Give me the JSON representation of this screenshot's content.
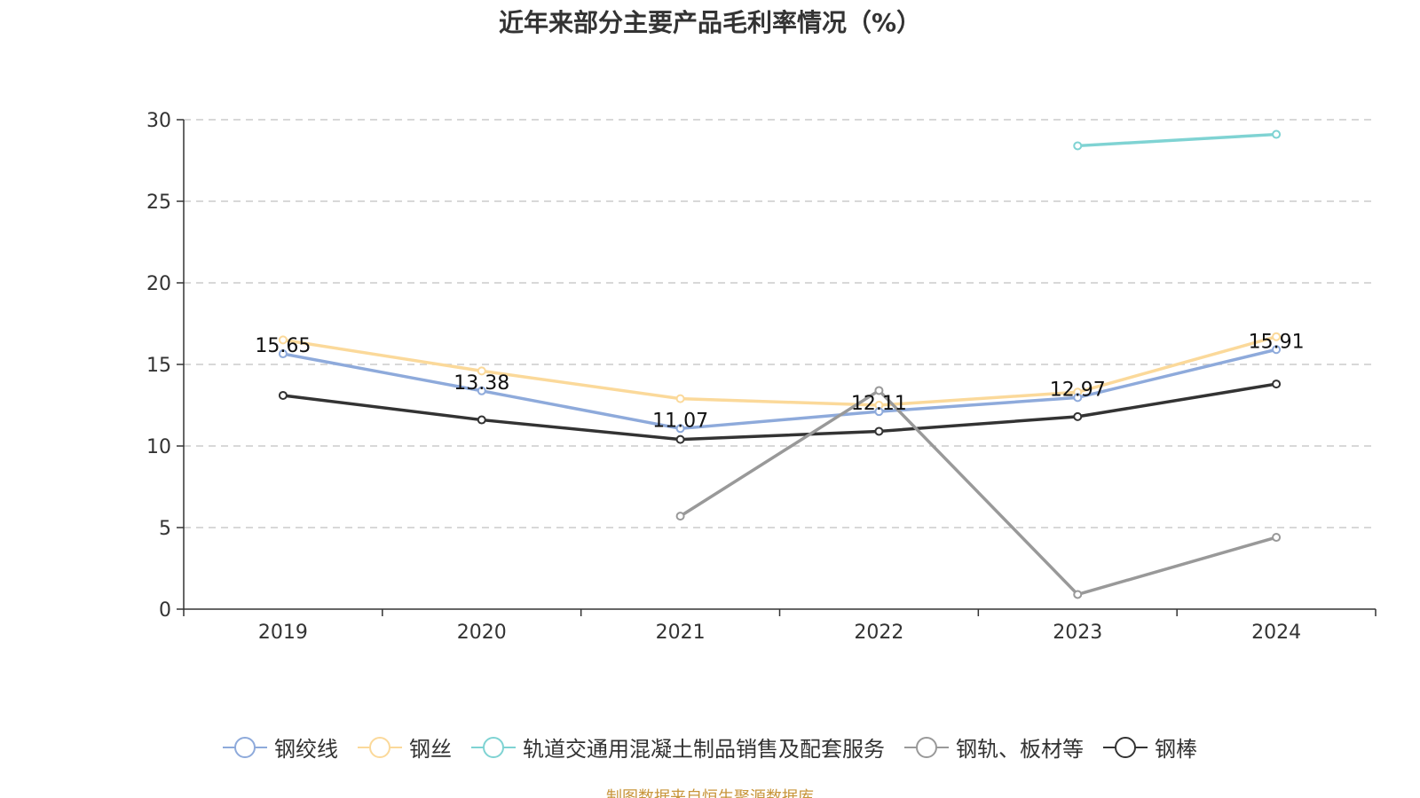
{
  "chart_data": {
    "type": "line",
    "title": "近年来部分主要产品毛利率情况（%）",
    "categories": [
      "2019",
      "2020",
      "2021",
      "2022",
      "2023",
      "2024"
    ],
    "ylim": [
      0,
      30
    ],
    "yticks": [
      0,
      5,
      10,
      15,
      20,
      25,
      30
    ],
    "grid": true,
    "legend_position": "bottom",
    "series": [
      {
        "name": "钢绞线",
        "color": "#8eaadb",
        "values": [
          15.65,
          13.38,
          11.07,
          12.11,
          12.97,
          15.91
        ],
        "labels": [
          "15.65",
          "13.38",
          "11.07",
          "12.11",
          "12.97",
          "15.91"
        ]
      },
      {
        "name": "钢丝",
        "color": "#fbd99a",
        "values": [
          16.5,
          14.6,
          12.9,
          12.5,
          13.3,
          16.7
        ]
      },
      {
        "name": "轨道交通用混凝土制品销售及配套服务",
        "color": "#7fd3d3",
        "values": [
          null,
          null,
          null,
          null,
          28.4,
          29.1
        ]
      },
      {
        "name": "钢轨、板材等",
        "color": "#999999",
        "values": [
          null,
          null,
          5.7,
          13.4,
          0.9,
          4.4
        ]
      },
      {
        "name": "钢棒",
        "color": "#333333",
        "values": [
          13.1,
          11.6,
          10.4,
          10.9,
          11.8,
          13.8
        ]
      }
    ]
  },
  "legend_icon": "circle-line-icon",
  "source_text": "制图数据来自恒生聚源数据库"
}
